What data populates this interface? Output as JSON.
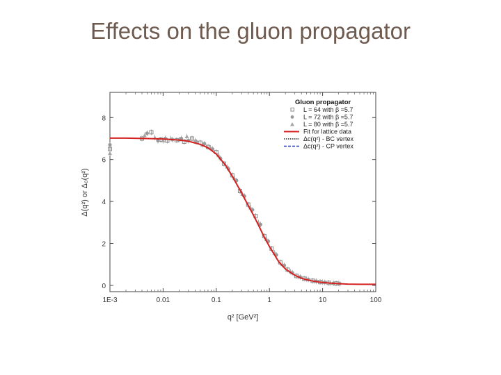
{
  "slide": {
    "title": "Effects on the gluon propagator"
  },
  "chart_data": {
    "type": "line",
    "xscale": "log",
    "xlim": [
      0.001,
      100
    ],
    "ylim": [
      -0.3,
      9.2
    ],
    "xticks": [
      0.001,
      0.01,
      0.1,
      1,
      10,
      100
    ],
    "xtick_labels": [
      "1E-3",
      "0.01",
      "0.1",
      "1",
      "10",
      "100"
    ],
    "yticks": [
      0,
      2,
      4,
      6,
      8
    ],
    "ytick_labels": [
      "0",
      "2",
      "4",
      "6",
      "8"
    ],
    "xlabel": "q² [GeV²]",
    "ylabel": "Δ(q²) or Δ₀(q²)",
    "legend": {
      "title": "Gluon propagator",
      "position": "top-right",
      "entries": [
        {
          "label": "L = 64 with β =5.7",
          "marker": "square"
        },
        {
          "label": "L = 72 with β =5.7",
          "marker": "circle"
        },
        {
          "label": "L = 80 with β =5.7",
          "marker": "triangle"
        },
        {
          "label": "Fit for lattice data",
          "marker": "line-red"
        },
        {
          "label": "Δc(q²) - BC vertex",
          "marker": "line-dotted"
        },
        {
          "label": "Δc(q²) - CP vertex",
          "marker": "line-dashed-blue"
        }
      ]
    },
    "series": [
      {
        "name": "Fit for lattice data",
        "color": "#d42020",
        "x": [
          0.001,
          0.002,
          0.005,
          0.01,
          0.02,
          0.03,
          0.05,
          0.07,
          0.1,
          0.15,
          0.2,
          0.3,
          0.4,
          0.5,
          0.6,
          0.8,
          1,
          1.5,
          2,
          3,
          4,
          5,
          7,
          10,
          15,
          20,
          30,
          50,
          100
        ],
        "y": [
          7.02,
          7.02,
          7.0,
          6.98,
          6.93,
          6.87,
          6.72,
          6.56,
          6.26,
          5.72,
          5.2,
          4.4,
          3.8,
          3.35,
          2.95,
          2.3,
          1.85,
          1.12,
          0.78,
          0.48,
          0.34,
          0.27,
          0.19,
          0.14,
          0.1,
          0.08,
          0.06,
          0.05,
          0.05
        ]
      },
      {
        "name": "L = 64 with β =5.7",
        "color": "#8a8a8a",
        "x": [
          0.001,
          0.004,
          0.006,
          0.009,
          0.012,
          0.018,
          0.025,
          0.035,
          0.05,
          0.07,
          0.1,
          0.14,
          0.2,
          0.28,
          0.4,
          0.55,
          0.8,
          1.1,
          1.6,
          2.2,
          3.2,
          4.5,
          6.5,
          9,
          13,
          18
        ],
        "y": [
          6.5,
          7.0,
          7.3,
          6.95,
          6.9,
          6.92,
          6.85,
          7.0,
          6.8,
          6.6,
          6.35,
          5.8,
          5.25,
          4.5,
          3.85,
          3.3,
          2.35,
          1.75,
          1.1,
          0.75,
          0.45,
          0.32,
          0.22,
          0.16,
          0.12,
          0.09
        ]
      },
      {
        "name": "L = 72 with β =5.7",
        "color": "#999999",
        "x": [
          0.001,
          0.005,
          0.008,
          0.011,
          0.015,
          0.022,
          0.03,
          0.042,
          0.06,
          0.085,
          0.12,
          0.17,
          0.24,
          0.34,
          0.48,
          0.68,
          0.95,
          1.35,
          1.9,
          2.7,
          3.8,
          5.4,
          7.6,
          11,
          16,
          21
        ],
        "y": [
          6.7,
          7.25,
          6.9,
          7.0,
          6.95,
          7.0,
          6.9,
          6.85,
          6.75,
          6.5,
          6.05,
          5.55,
          5.0,
          4.25,
          3.6,
          2.9,
          2.1,
          1.45,
          0.95,
          0.6,
          0.4,
          0.28,
          0.2,
          0.14,
          0.1,
          0.08
        ]
      },
      {
        "name": "L = 80 with β =5.7",
        "color": "#a5a5a5",
        "x": [
          0.001,
          0.0045,
          0.007,
          0.01,
          0.014,
          0.02,
          0.028,
          0.04,
          0.055,
          0.078,
          0.11,
          0.16,
          0.22,
          0.31,
          0.44,
          0.62,
          0.88,
          1.25,
          1.75,
          2.5,
          3.5,
          5,
          7,
          10,
          14,
          20
        ],
        "y": [
          6.3,
          7.15,
          7.05,
          6.9,
          7.0,
          6.95,
          7.1,
          6.9,
          6.7,
          6.55,
          6.2,
          5.65,
          5.1,
          4.35,
          3.7,
          3.0,
          2.2,
          1.55,
          1.0,
          0.65,
          0.42,
          0.3,
          0.21,
          0.15,
          0.11,
          0.09
        ]
      }
    ]
  }
}
